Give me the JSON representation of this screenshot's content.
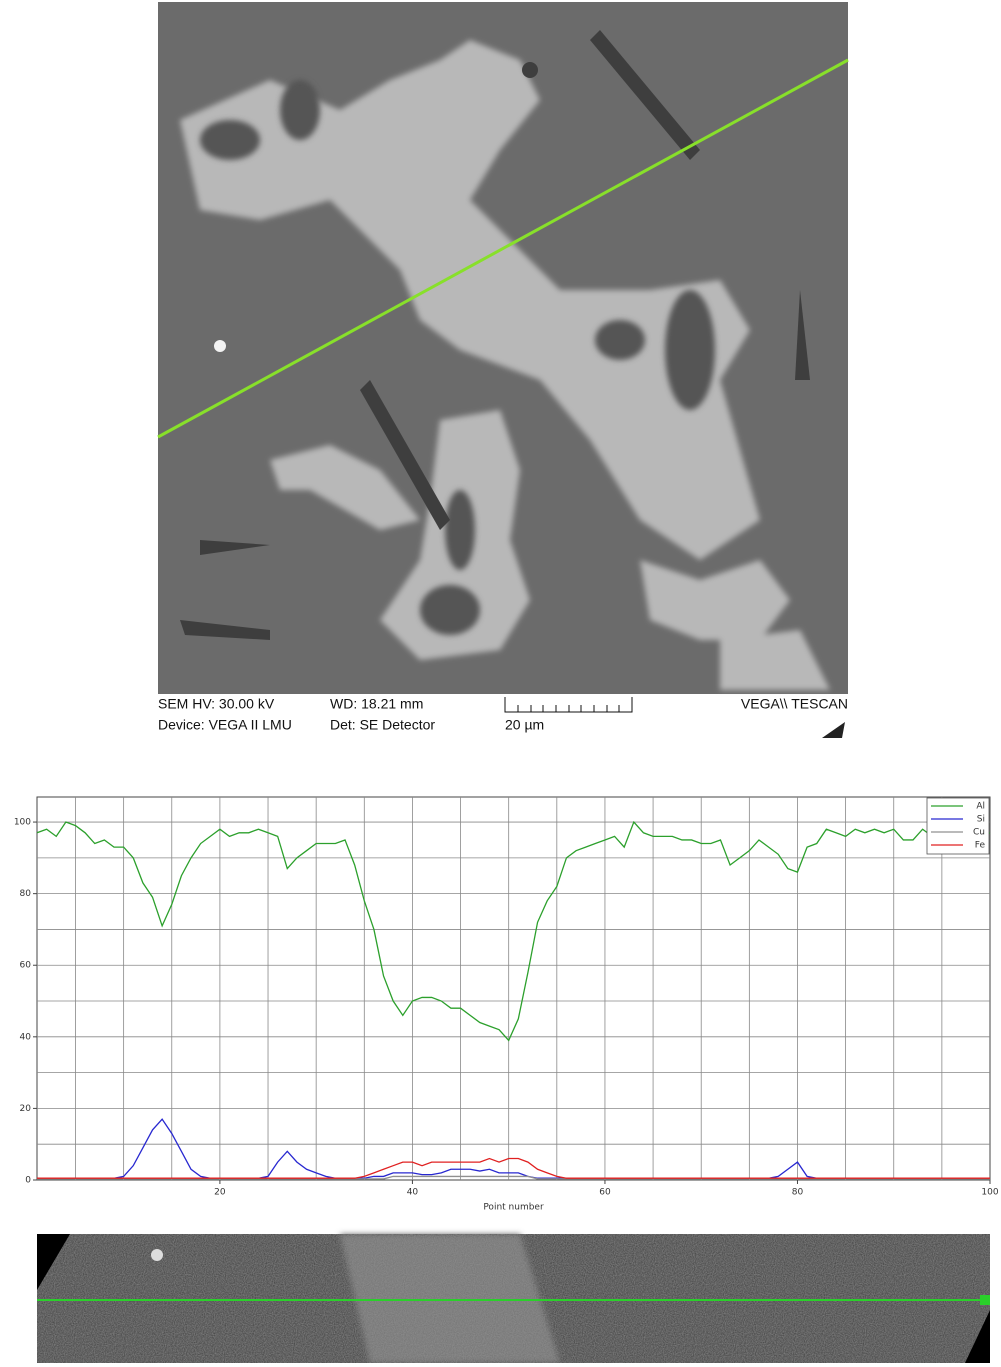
{
  "sem_info": {
    "hv": "SEM HV: 30.00 kV",
    "wd": "WD: 18.21 mm",
    "device": "Device: VEGA II LMU",
    "detector": "Det: SE Detector",
    "scale": "20 µm",
    "brand": "VEGA\\\\ TESCAN"
  },
  "chart_data": {
    "type": "line",
    "x_label": "Point number",
    "x": [
      1,
      2,
      3,
      4,
      5,
      6,
      7,
      8,
      9,
      10,
      11,
      12,
      13,
      14,
      15,
      16,
      17,
      18,
      19,
      20,
      21,
      22,
      23,
      24,
      25,
      26,
      27,
      28,
      29,
      30,
      31,
      32,
      33,
      34,
      35,
      36,
      37,
      38,
      39,
      40,
      41,
      42,
      43,
      44,
      45,
      46,
      47,
      48,
      49,
      50,
      51,
      52,
      53,
      54,
      55,
      56,
      57,
      58,
      59,
      60,
      61,
      62,
      63,
      64,
      65,
      66,
      67,
      68,
      69,
      70,
      71,
      72,
      73,
      74,
      75,
      76,
      77,
      78,
      79,
      80,
      81,
      82,
      83,
      84,
      85,
      86,
      87,
      88,
      89,
      90,
      91,
      92,
      93,
      94,
      95,
      96,
      97,
      98,
      99,
      100
    ],
    "series": [
      {
        "name": "Al",
        "color": "#2ca02c",
        "values": [
          97,
          98,
          96,
          100,
          99,
          97,
          94,
          95,
          93,
          93,
          90,
          83,
          79,
          71,
          77,
          85,
          90,
          94,
          96,
          98,
          96,
          97,
          97,
          98,
          97,
          96,
          87,
          90,
          92,
          94,
          94,
          94,
          95,
          88,
          78,
          70,
          57,
          50,
          46,
          50,
          51,
          51,
          50,
          48,
          48,
          46,
          44,
          43,
          42,
          39,
          45,
          58,
          72,
          78,
          82,
          90,
          92,
          93,
          94,
          95,
          96,
          93,
          100,
          97,
          96,
          96,
          96,
          95,
          95,
          94,
          94,
          95,
          88,
          90,
          92,
          95,
          93,
          91,
          87,
          86,
          93,
          94,
          98,
          97,
          96,
          98,
          97,
          98,
          97,
          98,
          95,
          95,
          98,
          96,
          97,
          96,
          95,
          96,
          96,
          97
        ]
      },
      {
        "name": "Si",
        "color": "#2828d0",
        "values": [
          0.5,
          0.5,
          0.5,
          0.5,
          0.5,
          0.5,
          0.5,
          0.5,
          0.5,
          1,
          4,
          9,
          14,
          17,
          13,
          8,
          3,
          1,
          0.5,
          0.5,
          0.5,
          0.5,
          0.5,
          0.5,
          1,
          5,
          8,
          5,
          3,
          2,
          1,
          0.5,
          0.5,
          0.5,
          0.5,
          1,
          1,
          2,
          2,
          2,
          1.5,
          1.5,
          2,
          3,
          3,
          3,
          2.5,
          3,
          2,
          2,
          2,
          1,
          0.5,
          0.5,
          0.5,
          0.5,
          0.5,
          0.5,
          0.5,
          0.5,
          0.5,
          0.5,
          0.5,
          0.5,
          0.5,
          0.5,
          0.5,
          0.5,
          0.5,
          0.5,
          0.5,
          0.5,
          0.5,
          0.5,
          0.5,
          0.5,
          0.5,
          1,
          3,
          5,
          1,
          0.5,
          0.5,
          0.5,
          0.5,
          0.5,
          0.5,
          0.5,
          0.5,
          0.5,
          0.5,
          0.5,
          0.5,
          0.5,
          0.5,
          0.5,
          0.5,
          0.5,
          0.5,
          0.5
        ]
      },
      {
        "name": "Cu",
        "color": "#909090",
        "values": [
          0.3,
          0.3,
          0.3,
          0.3,
          0.3,
          0.3,
          0.3,
          0.3,
          0.3,
          0.3,
          0.3,
          0.3,
          0.3,
          0.3,
          0.3,
          0.3,
          0.3,
          0.3,
          0.3,
          0.3,
          0.3,
          0.3,
          0.3,
          0.3,
          0.3,
          0.3,
          0.3,
          0.3,
          0.3,
          0.3,
          0.3,
          0.3,
          0.3,
          0.3,
          0.3,
          0.3,
          0.3,
          1,
          1,
          1,
          1,
          1,
          1,
          1,
          1,
          1,
          1,
          1,
          1,
          1,
          1,
          1,
          0.3,
          0.3,
          0.3,
          0.3,
          0.3,
          0.3,
          0.3,
          0.3,
          0.3,
          0.3,
          0.3,
          0.3,
          0.3,
          0.3,
          0.3,
          0.3,
          0.3,
          0.3,
          0.3,
          0.3,
          0.3,
          0.3,
          0.3,
          0.3,
          0.3,
          0.3,
          0.3,
          0.3,
          0.3,
          0.3,
          0.3,
          0.3,
          0.3,
          0.3,
          0.3,
          0.3,
          0.3,
          0.3,
          0.3,
          0.3,
          0.3,
          0.3,
          0.3,
          0.3,
          0.3,
          0.3,
          0.3,
          0.3
        ]
      },
      {
        "name": "Fe",
        "color": "#e02020",
        "values": [
          0.5,
          0.5,
          0.5,
          0.5,
          0.5,
          0.5,
          0.5,
          0.5,
          0.5,
          0.5,
          0.5,
          0.5,
          0.5,
          0.5,
          0.5,
          0.5,
          0.5,
          0.5,
          0.5,
          0.5,
          0.5,
          0.5,
          0.5,
          0.5,
          0.5,
          0.5,
          0.5,
          0.5,
          0.5,
          0.5,
          0.5,
          0.5,
          0.5,
          0.5,
          1,
          2,
          3,
          4,
          5,
          5,
          4,
          5,
          5,
          5,
          5,
          5,
          5,
          6,
          5,
          6,
          6,
          5,
          3,
          2,
          1,
          0.5,
          0.5,
          0.5,
          0.5,
          0.5,
          0.5,
          0.5,
          0.5,
          0.5,
          0.5,
          0.5,
          0.5,
          0.5,
          0.5,
          0.5,
          0.5,
          0.5,
          0.5,
          0.5,
          0.5,
          0.5,
          0.5,
          0.5,
          0.5,
          0.5,
          0.5,
          0.5,
          0.5,
          0.5,
          0.5,
          0.5,
          0.5,
          0.5,
          0.5,
          0.5,
          0.5,
          0.5,
          0.5,
          0.5,
          0.5,
          0.5,
          0.5,
          0.5,
          0.5,
          0.5
        ]
      }
    ],
    "xlim": [
      1,
      100
    ],
    "xticks": [
      20,
      40,
      60,
      80,
      100
    ],
    "ylim": [
      0,
      107
    ],
    "yticks": [
      0,
      20,
      40,
      60,
      80,
      100
    ],
    "xgrid": [
      5,
      10,
      15,
      20,
      25,
      30,
      35,
      40,
      45,
      50,
      55,
      60,
      65,
      70,
      75,
      80,
      85,
      90,
      95
    ],
    "ygrid": [
      10,
      20,
      30,
      40,
      50,
      60,
      70,
      80,
      90,
      100
    ],
    "grid": true,
    "legend": "top-right"
  }
}
